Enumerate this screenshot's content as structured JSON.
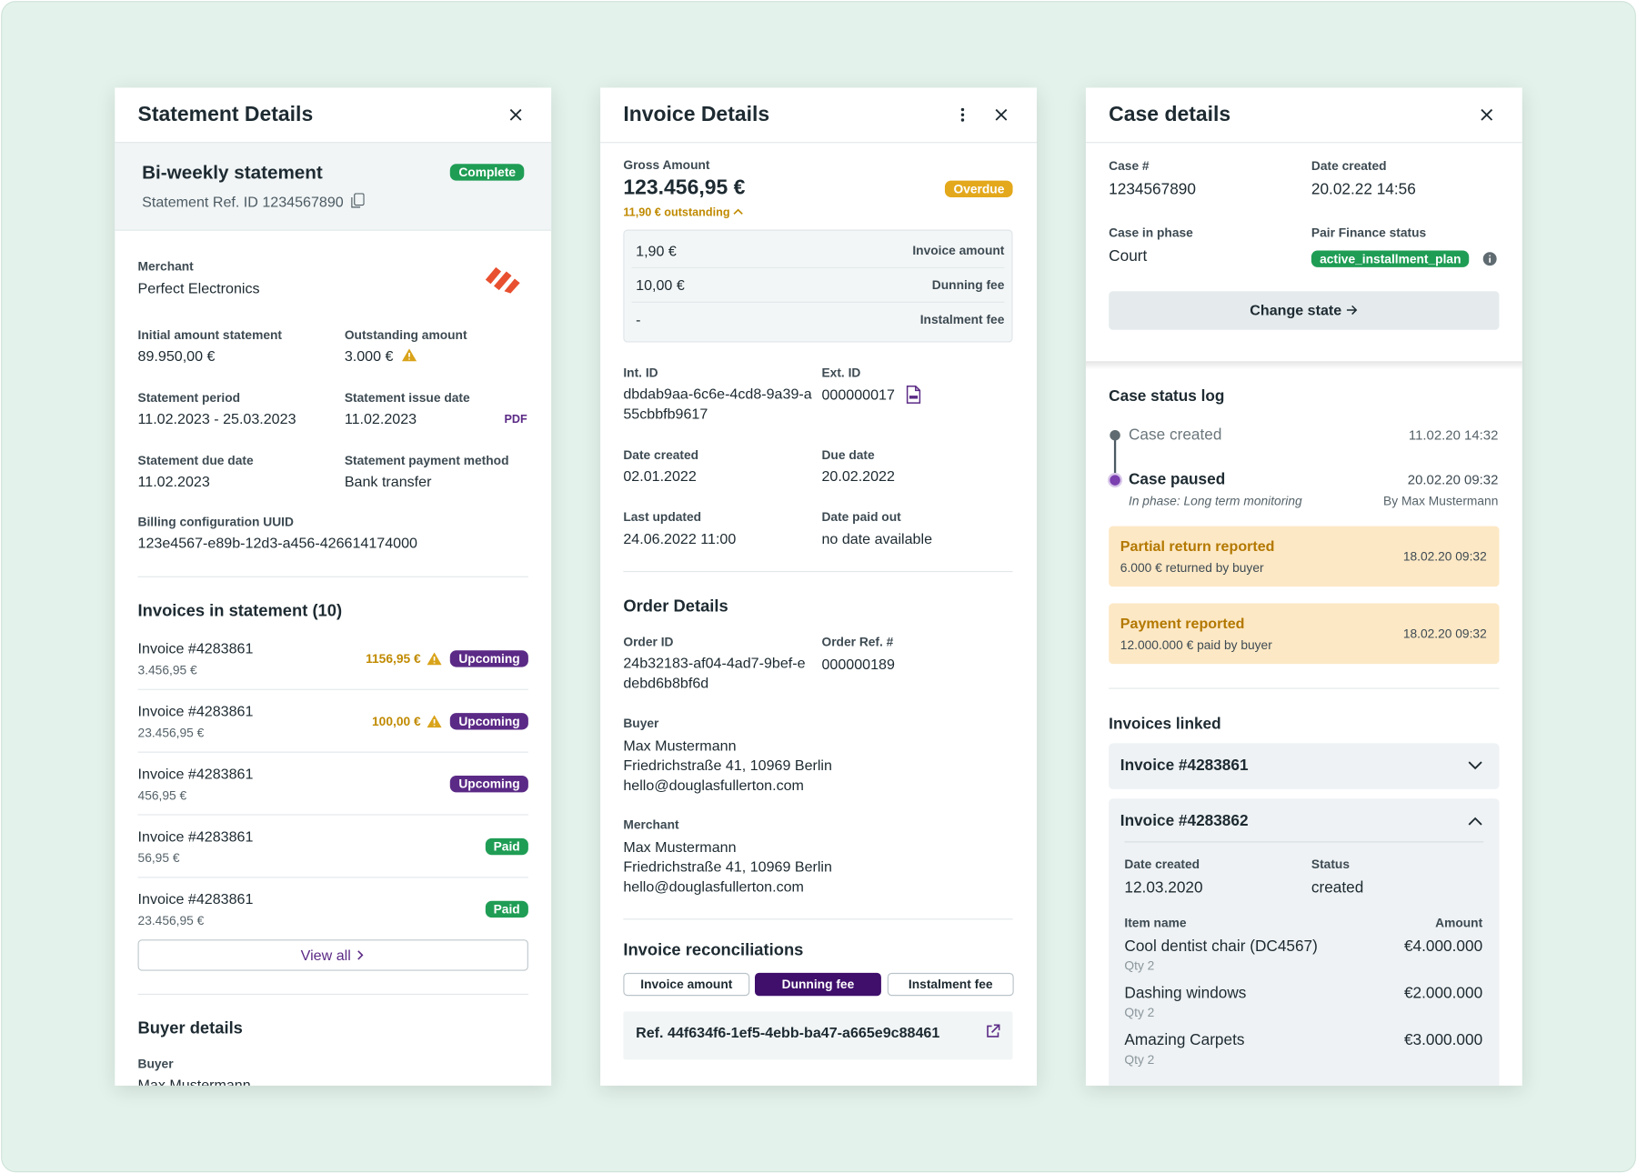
{
  "statement_panel": {
    "title": "Statement Details",
    "heading": "Bi-weekly statement",
    "status": "Complete",
    "reference": "Statement Ref. ID 1234567890",
    "merchant": {
      "label": "Merchant",
      "value": "Perfect Electronics"
    },
    "fields": [
      {
        "label": "Initial amount statement",
        "value": "89.950,00 €"
      },
      {
        "label": "Outstanding amount",
        "value": "3.000 €"
      },
      {
        "label": "Statement period",
        "value": "11.02.2023 - 25.03.2023"
      },
      {
        "label": "Statement issue date",
        "value": "11.02.2023"
      },
      {
        "label": "Statement due date",
        "value": "11.02.2023"
      },
      {
        "label": "Statement payment method",
        "value": "Bank transfer"
      },
      {
        "label": "Billing configuration UUID",
        "value": "123e4567-e89b-12d3-a456-426614174000"
      }
    ],
    "pdf": "PDF",
    "invoices_title": "Invoices in statement (10)",
    "invoices": [
      {
        "name": "Invoice #4283861",
        "amount": "3.456,95 €",
        "outstanding": "1156,95 €",
        "status": "Upcoming"
      },
      {
        "name": "Invoice #4283861",
        "amount": "23.456,95 €",
        "outstanding": "100,00 €",
        "status": "Upcoming"
      },
      {
        "name": "Invoice #4283861",
        "amount": "456,95 €",
        "status": "Upcoming"
      },
      {
        "name": "Invoice #4283861",
        "amount": "56,95 €",
        "status": "Paid"
      },
      {
        "name": "Invoice #4283861",
        "amount": "23.456,95 €",
        "status": "Paid"
      }
    ],
    "view_all": "View all",
    "buyer_title": "Buyer details",
    "buyer": {
      "label": "Buyer",
      "value": "Max Mustermann"
    }
  },
  "invoice_panel": {
    "title": "Invoice Details",
    "gross_label": "Gross Amount",
    "gross": "123.456,95 €",
    "status": "Overdue",
    "outstanding": "11,90 € outstanding",
    "breakdown": [
      {
        "value": "1,90 €",
        "label": "Invoice amount"
      },
      {
        "value": "10,00 €",
        "label": "Dunning fee"
      },
      {
        "value": "-",
        "label": "Instalment fee"
      }
    ],
    "fields": [
      {
        "label": "Int. ID",
        "value": "dbdab9aa-6c6e-4cd8-9a39-a55cbbfb9617"
      },
      {
        "label": "Ext. ID",
        "value": "000000017"
      },
      {
        "label": "Date created",
        "value": "02.01.2022"
      },
      {
        "label": "Due date",
        "value": "20.02.2022"
      },
      {
        "label": "Last updated",
        "value": "24.06.2022 11:00"
      },
      {
        "label": "Date paid out",
        "value": "no date available"
      }
    ],
    "order_title": "Order Details",
    "order_fields": [
      {
        "label": "Order ID",
        "value": "24b32183-af04-4ad7-9bef-edebd6b8bf6d"
      },
      {
        "label": "Order Ref. #",
        "value": "000000189"
      }
    ],
    "buyer": {
      "label": "Buyer",
      "lines": [
        "Max Mustermann",
        "Friedrichstraße 41, 10969 Berlin",
        "hello@douglasfullerton.com"
      ]
    },
    "merchant": {
      "label": "Merchant",
      "lines": [
        "Max Mustermann",
        "Friedrichstraße 41, 10969 Berlin",
        "hello@douglasfullerton.com"
      ]
    },
    "reconciliations_title": "Invoice reconciliations",
    "tabs": [
      "Invoice amount",
      "Dunning fee",
      "Instalment fee"
    ],
    "reference": "Ref. 44f634f6-1ef5-4ebb-ba47-a665e9c88461"
  },
  "case_panel": {
    "title": "Case details",
    "fields": [
      {
        "label": "Case #",
        "value": "1234567890"
      },
      {
        "label": "Date created",
        "value": "20.02.22 14:56"
      },
      {
        "label": "Case in phase",
        "value": "Court"
      },
      {
        "label": "Pair Finance status",
        "value": "active_installment_plan"
      }
    ],
    "change_state": "Change state",
    "log_title": "Case status log",
    "log": [
      {
        "event": "Case created",
        "time": "11.02.20 14:32"
      },
      {
        "event": "Case paused",
        "time": "20.02.20 09:32",
        "detail": "In phase: Long term monitoring",
        "author": "By Max Mustermann"
      }
    ],
    "reports": [
      {
        "title": "Partial return reported",
        "detail": "6.000 € returned by buyer",
        "time": "18.02.20 09:32"
      },
      {
        "title": "Payment reported",
        "detail": "12.000.000 € paid by buyer",
        "time": "18.02.20 09:32"
      }
    ],
    "invoices_title": "Invoices linked",
    "invoices": [
      {
        "name": "Invoice #4283861"
      },
      {
        "name": "Invoice #4283862",
        "fields": [
          {
            "label": "Date created",
            "value": "12.03.2020"
          },
          {
            "label": "Status",
            "value": "created"
          }
        ],
        "item_header": "Item name",
        "amount_header": "Amount",
        "items": [
          {
            "name": "Cool dentist chair (DC4567)",
            "qty": "Qty 2",
            "amount": "€4.000.000"
          },
          {
            "name": "Dashing windows",
            "qty": "Qty 2",
            "amount": "€2.000.000"
          },
          {
            "name": "Amazing Carpets",
            "qty": "Qty 2",
            "amount": "€3.000.000"
          }
        ]
      }
    ]
  }
}
